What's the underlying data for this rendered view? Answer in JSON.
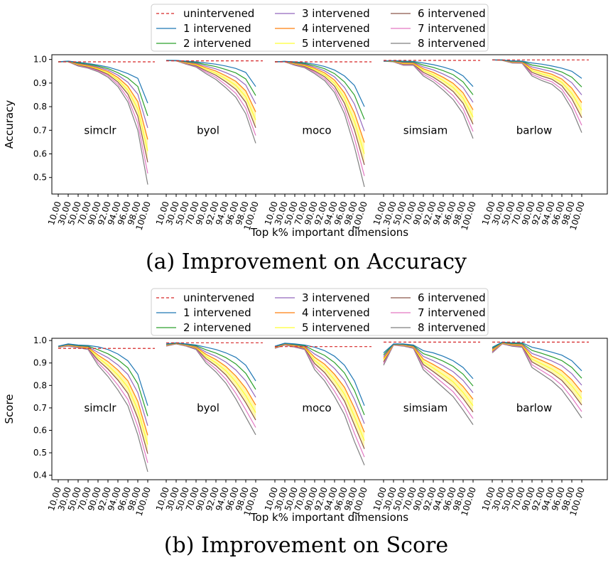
{
  "colors": {
    "unintervened": "#d62728",
    "i1": "#1f77b4",
    "i2": "#2ca02c",
    "i3": "#9467bd",
    "i4": "#ff7f0e",
    "i5": "#ffff33",
    "i6": "#8c564b",
    "i7": "#e377c2",
    "i8": "#7f7f7f",
    "fill": "#fff9b0"
  },
  "legend": {
    "entries": [
      "unintervened",
      "1 intervened",
      "2 intervened",
      "3 intervened",
      "4 intervened",
      "5 intervened",
      "6 intervened",
      "7 intervened",
      "8 intervened"
    ]
  },
  "chart_data": [
    {
      "type": "line",
      "caption": "(a) Improvement on Accuracy",
      "xlabel": "Top k% important dimensions",
      "ylabel": "Accuracy",
      "ylim": [
        0.43,
        1.02
      ],
      "yticks": [
        "0.5",
        "0.6",
        "0.7",
        "0.8",
        "0.9",
        "1.0"
      ],
      "x_ticks": [
        "10.00",
        "30.00",
        "50.00",
        "70.00",
        "90.00",
        "92.00",
        "94.00",
        "96.00",
        "98.00",
        "100.00"
      ],
      "panels": [
        {
          "model": "simclr",
          "unintervened": 0.99,
          "i1": [
            0.99,
            0.993,
            0.988,
            0.983,
            0.976,
            0.968,
            0.955,
            0.94,
            0.92,
            0.815
          ],
          "i8": [
            0.99,
            0.99,
            0.972,
            0.963,
            0.948,
            0.925,
            0.885,
            0.82,
            0.7,
            0.47
          ]
        },
        {
          "model": "byol",
          "unintervened": 0.994,
          "i1": [
            0.996,
            0.996,
            0.993,
            0.99,
            0.985,
            0.98,
            0.972,
            0.962,
            0.945,
            0.885
          ],
          "i8": [
            0.995,
            0.994,
            0.98,
            0.968,
            0.94,
            0.915,
            0.88,
            0.84,
            0.77,
            0.645
          ]
        },
        {
          "model": "moco",
          "unintervened": 0.99,
          "i1": [
            0.99,
            0.992,
            0.99,
            0.986,
            0.98,
            0.97,
            0.955,
            0.93,
            0.89,
            0.8
          ],
          "i8": [
            0.99,
            0.99,
            0.975,
            0.965,
            0.94,
            0.91,
            0.86,
            0.77,
            0.63,
            0.46
          ]
        },
        {
          "model": "simsiam",
          "unintervened": 0.996,
          "i1": [
            0.993,
            0.995,
            0.993,
            0.992,
            0.985,
            0.978,
            0.968,
            0.955,
            0.93,
            0.885
          ],
          "i8": [
            0.993,
            0.99,
            0.975,
            0.975,
            0.93,
            0.905,
            0.87,
            0.83,
            0.77,
            0.665
          ]
        },
        {
          "model": "barlow",
          "unintervened": 0.998,
          "i1": [
            0.998,
            0.998,
            0.994,
            0.993,
            0.985,
            0.98,
            0.972,
            0.963,
            0.95,
            0.92
          ],
          "i8": [
            0.998,
            0.996,
            0.985,
            0.984,
            0.93,
            0.91,
            0.895,
            0.86,
            0.79,
            0.69
          ]
        }
      ]
    },
    {
      "type": "line",
      "caption": "(b) Improvement on Score",
      "xlabel": "Top k% important dimensions",
      "ylabel": "Score",
      "ylim": [
        0.38,
        1.01
      ],
      "yticks": [
        "0.4",
        "0.5",
        "0.6",
        "0.7",
        "0.8",
        "0.9",
        "1.0"
      ],
      "x_ticks": [
        "10.00",
        "30.00",
        "50.00",
        "70.00",
        "90.00",
        "92.00",
        "94.00",
        "96.00",
        "98.00",
        "100.00"
      ],
      "panels": [
        {
          "model": "simclr",
          "unintervened": 0.965,
          "i1": [
            0.975,
            0.985,
            0.98,
            0.978,
            0.972,
            0.96,
            0.94,
            0.91,
            0.85,
            0.71
          ],
          "i8": [
            0.97,
            0.975,
            0.968,
            0.96,
            0.89,
            0.84,
            0.78,
            0.71,
            0.58,
            0.415
          ]
        },
        {
          "model": "byol",
          "unintervened": 0.99,
          "i1": [
            0.985,
            0.99,
            0.985,
            0.98,
            0.97,
            0.96,
            0.945,
            0.925,
            0.89,
            0.82
          ],
          "i8": [
            0.975,
            0.985,
            0.975,
            0.96,
            0.9,
            0.86,
            0.81,
            0.74,
            0.66,
            0.58
          ]
        },
        {
          "model": "moco",
          "unintervened": 0.973,
          "i1": [
            0.975,
            0.988,
            0.985,
            0.98,
            0.97,
            0.955,
            0.93,
            0.89,
            0.82,
            0.71
          ],
          "i8": [
            0.965,
            0.98,
            0.97,
            0.96,
            0.87,
            0.82,
            0.75,
            0.67,
            0.55,
            0.445
          ]
        },
        {
          "model": "simsiam",
          "unintervened": 0.993,
          "i1": [
            0.945,
            0.985,
            0.985,
            0.98,
            0.955,
            0.945,
            0.93,
            0.91,
            0.88,
            0.83
          ],
          "i8": [
            0.89,
            0.98,
            0.975,
            0.965,
            0.87,
            0.83,
            0.79,
            0.75,
            0.69,
            0.625
          ]
        },
        {
          "model": "barlow",
          "unintervened": 0.993,
          "i1": [
            0.97,
            0.993,
            0.99,
            0.99,
            0.97,
            0.96,
            0.948,
            0.935,
            0.91,
            0.865
          ],
          "i8": [
            0.945,
            0.985,
            0.975,
            0.97,
            0.88,
            0.85,
            0.82,
            0.78,
            0.72,
            0.655
          ]
        }
      ]
    }
  ]
}
